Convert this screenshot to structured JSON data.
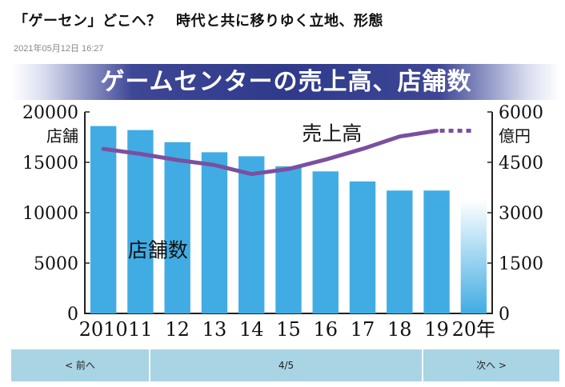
{
  "article": {
    "headline": "「ゲーセン」どこへ？　時代と共に移りゆく立地、形態",
    "datetime": "2021年05月12日 16:27"
  },
  "pager": {
    "prev": "< 前へ",
    "position": "4/5",
    "next": "次へ >"
  },
  "chart_data": {
    "type": "bar",
    "title": "ゲームセンターの売上高、店舗数",
    "categories": [
      "2010",
      "11",
      "12",
      "13",
      "14",
      "15",
      "16",
      "17",
      "18",
      "19",
      "20年"
    ],
    "left_axis": {
      "unit_label": "店舗",
      "ticks": [
        0,
        5000,
        10000,
        15000,
        20000
      ],
      "ylim": [
        0,
        20000
      ]
    },
    "right_axis": {
      "unit_label": "億円",
      "ticks": [
        0,
        1500,
        3000,
        4500,
        6000
      ],
      "ylim": [
        0,
        6000
      ]
    },
    "series": [
      {
        "name": "店舗数",
        "type": "bar",
        "axis": "left",
        "values": [
          18600,
          18200,
          17000,
          16000,
          15600,
          14600,
          14100,
          13100,
          12200,
          12200,
          11300
        ],
        "estimated_last": true
      },
      {
        "name": "売上高",
        "type": "line",
        "axis": "right",
        "values": [
          4900,
          4750,
          4570,
          4420,
          4150,
          4300,
          4580,
          4900,
          5270,
          5440,
          5440
        ],
        "dotted_last_segment": true
      }
    ],
    "colors": {
      "bar": "#41ace3",
      "line": "#7b4fa0",
      "banner": "#343e8e"
    },
    "grid": false
  }
}
